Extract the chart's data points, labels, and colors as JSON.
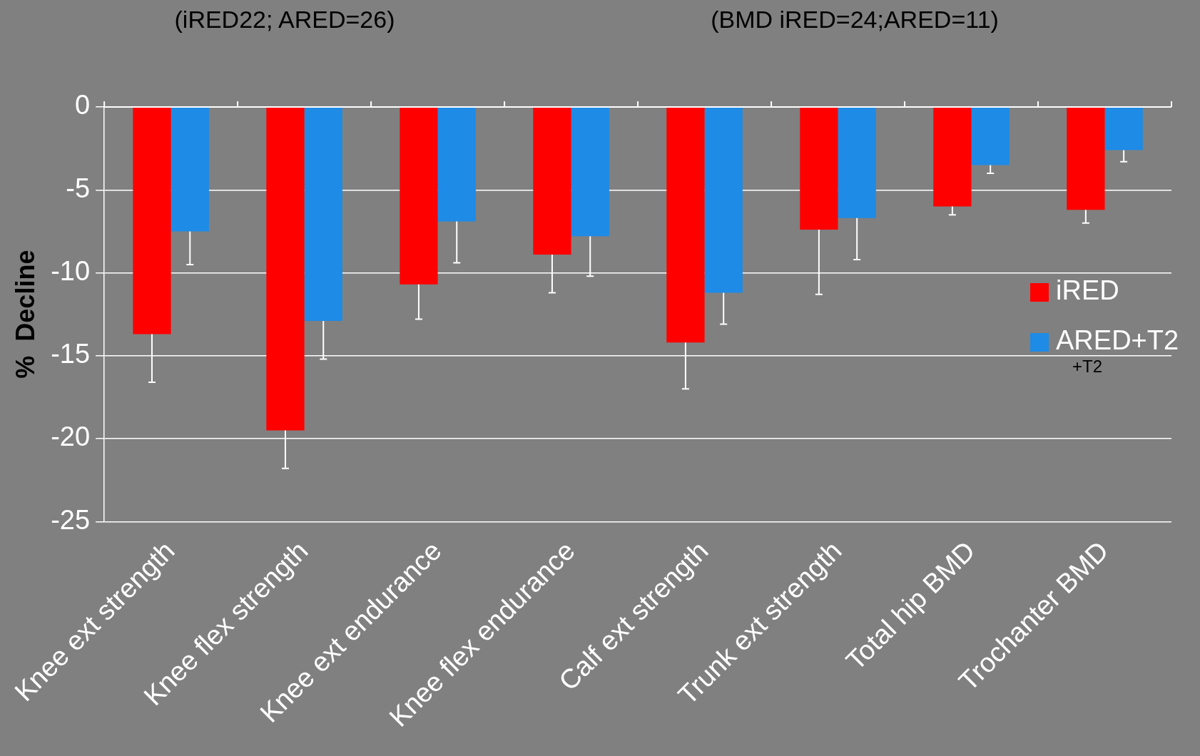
{
  "chart_data": {
    "type": "bar",
    "ylabel": "%  Decline",
    "categories": [
      "Knee ext strength",
      "Knee flex strength",
      "Knee ext endurance",
      "Knee flex endurance",
      "Calf ext strength",
      "Trunk ext strength",
      "Total hip BMD",
      "Trochanter BMD"
    ],
    "series": [
      {
        "name": "iRED",
        "color": "#ff0000",
        "values": [
          -13.7,
          -19.5,
          -10.7,
          -8.9,
          -14.2,
          -7.4,
          -6.0,
          -6.2
        ],
        "errors": [
          [
            -16.6,
            -13.7
          ],
          [
            -21.8,
            -19.5
          ],
          [
            -12.8,
            -10.7
          ],
          [
            -11.2,
            -8.9
          ],
          [
            -17.0,
            -14.2
          ],
          [
            -11.3,
            -7.4
          ],
          [
            -6.5,
            -6.0
          ],
          [
            -7.0,
            -6.2
          ]
        ]
      },
      {
        "name": "ARED+T2",
        "color": "#1e8be6",
        "values": [
          -7.5,
          -12.9,
          -6.9,
          -7.8,
          -11.2,
          -6.7,
          -3.5,
          -2.6
        ],
        "errors": [
          [
            -9.5,
            -7.5
          ],
          [
            -15.2,
            -12.9
          ],
          [
            -9.4,
            -6.9
          ],
          [
            -10.2,
            -7.8
          ],
          [
            -13.1,
            -11.2
          ],
          [
            -9.2,
            -6.7
          ],
          [
            -4.0,
            -3.5
          ],
          [
            -3.3,
            -2.6
          ]
        ]
      }
    ],
    "ylim": [
      -25,
      0
    ],
    "yticks": [
      -25,
      -20,
      -15,
      -10,
      -5,
      0
    ],
    "grid": "y",
    "legend": "right",
    "annotations": [
      "(iRED22; ARED=26)",
      "(BMD iRED=24;ARED=11)",
      "+T2"
    ]
  }
}
